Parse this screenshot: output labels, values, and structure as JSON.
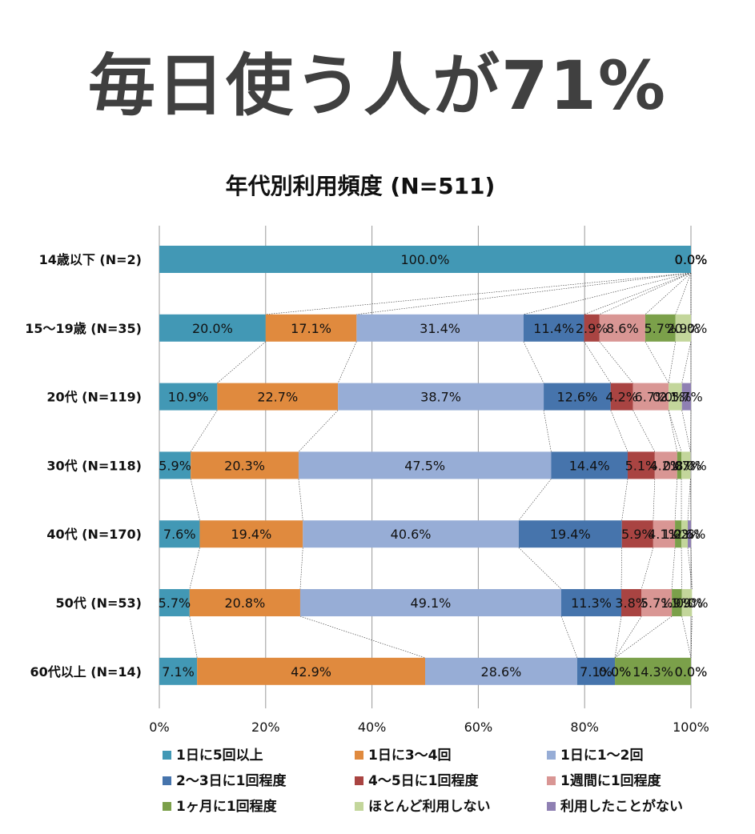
{
  "headline": "毎日使う人が71%",
  "chart_data": {
    "type": "bar",
    "orientation": "horizontal",
    "stacked": "percent",
    "title": "年代別利用頻度 (N=511)",
    "xlim": [
      0,
      100
    ],
    "x_ticks": [
      "0%",
      "20%",
      "40%",
      "60%",
      "80%",
      "100%"
    ],
    "grid": true,
    "legend_position": "bottom",
    "categories": [
      "14歳以下 (N=2)",
      "15～19歳 (N=35)",
      "20代 (N=119)",
      "30代 (N=118)",
      "40代 (N=170)",
      "50代 (N=53)",
      "60代以上 (N=14)"
    ],
    "series": [
      {
        "name": "1日に5回以上",
        "color": "#4298B5",
        "values": [
          100.0,
          20.0,
          10.9,
          5.9,
          7.6,
          5.7,
          7.1
        ]
      },
      {
        "name": "1日に3～4回",
        "color": "#E08A3E",
        "values": [
          0.0,
          17.1,
          22.7,
          20.3,
          19.4,
          20.8,
          42.9
        ]
      },
      {
        "name": "1日に1～2回",
        "color": "#97ADD6",
        "values": [
          0.0,
          31.4,
          38.7,
          47.5,
          40.6,
          49.1,
          28.6
        ]
      },
      {
        "name": "2～3日に1回程度",
        "color": "#4674AC",
        "values": [
          0.0,
          11.4,
          12.6,
          14.4,
          19.4,
          11.3,
          7.1
        ]
      },
      {
        "name": "4～5日に1回程度",
        "color": "#A94442",
        "values": [
          0.0,
          2.9,
          4.2,
          5.1,
          5.9,
          3.8,
          0.0
        ]
      },
      {
        "name": "1週間に1回程度",
        "color": "#D99694",
        "values": [
          0.0,
          8.6,
          6.7,
          4.2,
          4.1,
          5.7,
          0.0
        ]
      },
      {
        "name": "1ヶ月に1回程度",
        "color": "#7BA04A",
        "values": [
          0.0,
          5.7,
          0.0,
          0.8,
          1.2,
          1.9,
          14.3
        ]
      },
      {
        "name": "ほとんど利用しない",
        "color": "#C3D69B",
        "values": [
          0.0,
          2.9,
          2.5,
          1.7,
          1.2,
          1.9,
          0.0
        ]
      },
      {
        "name": "利用したことがない",
        "color": "#8F80B3",
        "values": [
          0.0,
          0.0,
          1.7,
          0.0,
          0.6,
          0.0,
          0.0
        ]
      }
    ]
  }
}
